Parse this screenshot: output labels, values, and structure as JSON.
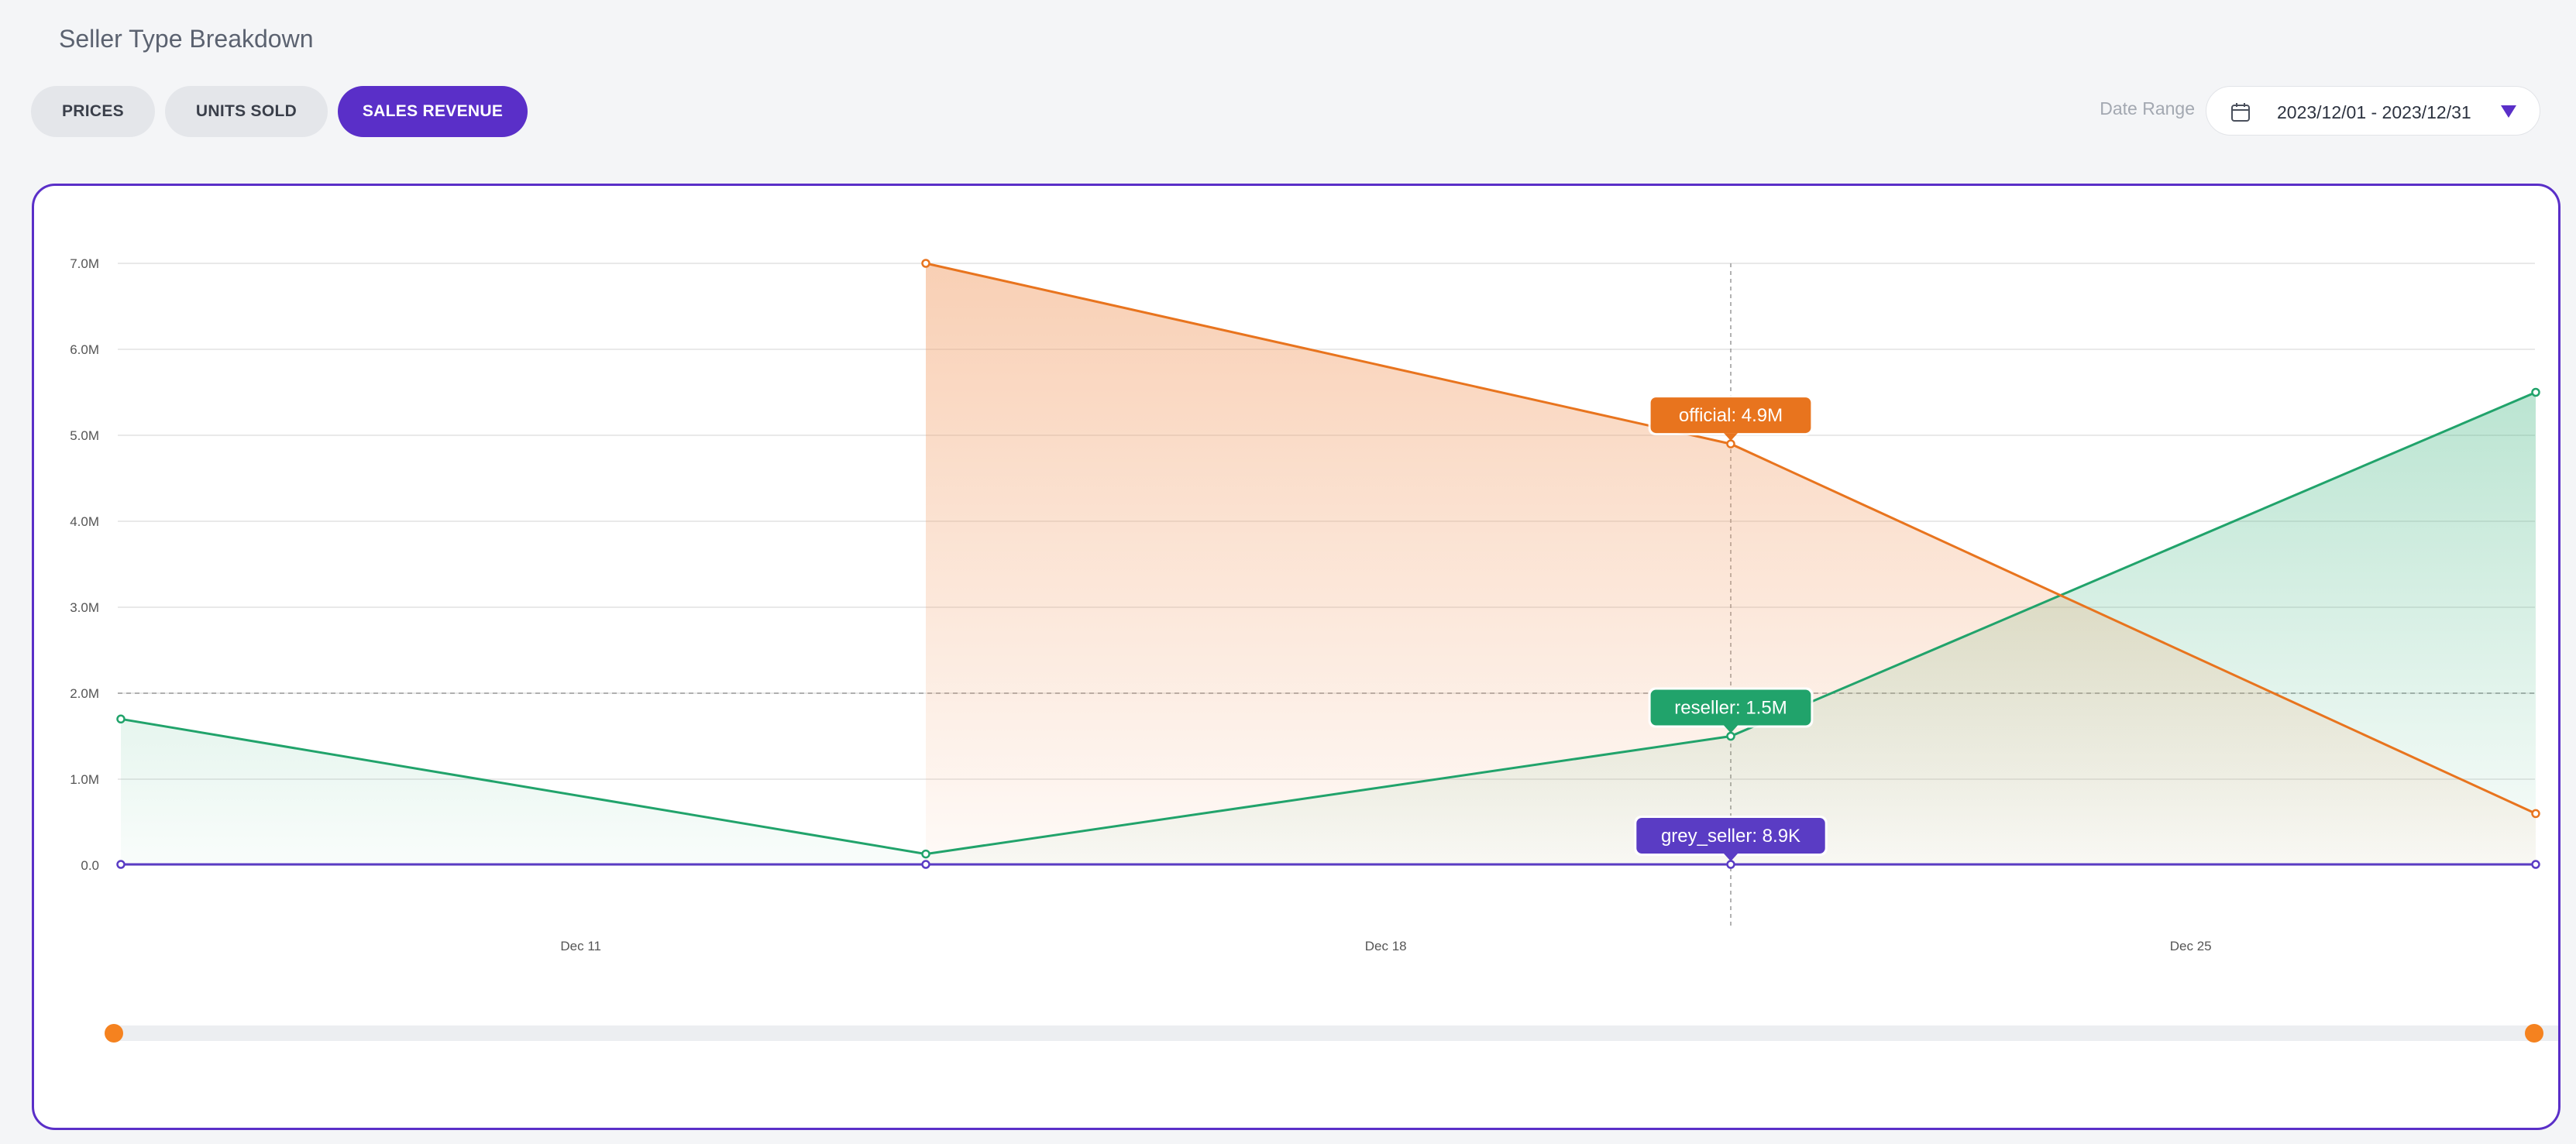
{
  "page": {
    "title": "Seller Type Breakdown"
  },
  "tabs": [
    {
      "label": "PRICES",
      "active": false
    },
    {
      "label": "UNITS SOLD",
      "active": false
    },
    {
      "label": "SALES REVENUE",
      "active": true
    }
  ],
  "date_range": {
    "label": "Date Range",
    "value": "2023/12/01 - 2023/12/31",
    "icon": "calendar-icon"
  },
  "colors": {
    "accent": "#5a2fc8",
    "official": "#e8741e",
    "reseller": "#21a36b",
    "grey_seller": "#5a3cc4",
    "slider_handle": "#f5821f"
  },
  "chart_data": {
    "type": "area",
    "x": [
      "2023-12-07",
      "2023-12-14",
      "2023-12-21",
      "2023-12-28"
    ],
    "series": [
      {
        "name": "official",
        "values": [
          null,
          7000000,
          4900000,
          600000
        ]
      },
      {
        "name": "reseller",
        "values": [
          1700000,
          130000,
          1500000,
          5500000
        ]
      },
      {
        "name": "grey_seller",
        "values": [
          8900,
          8900,
          8900,
          8900
        ]
      }
    ],
    "y_ticks": [
      "0.0",
      "1.0M",
      "2.0M",
      "3.0M",
      "4.0M",
      "5.0M",
      "6.0M",
      "7.0M"
    ],
    "x_ticks": [
      "Dec 11",
      "Dec 18",
      "Dec 25"
    ],
    "ylim": [
      0,
      7000000
    ],
    "reference_line": 2000000,
    "hover_date": "2023-12-21",
    "tooltips": [
      "official: 4.9M",
      "reseller: 1.5M",
      "grey_seller: 8.9K"
    ],
    "grid": true
  }
}
